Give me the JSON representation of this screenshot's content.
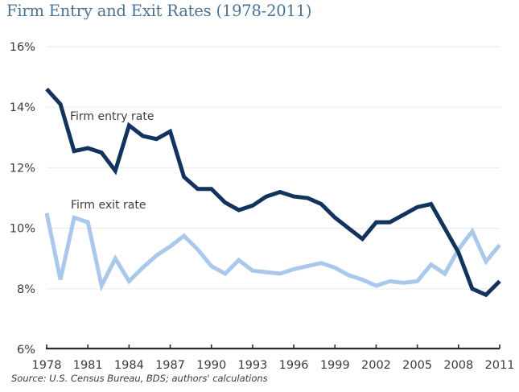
{
  "chart_data": {
    "type": "line",
    "title": "Firm Entry and Exit Rates (1978-2011)",
    "xlabel": "",
    "ylabel": "",
    "x": [
      1978,
      1979,
      1980,
      1981,
      1982,
      1983,
      1984,
      1985,
      1986,
      1987,
      1988,
      1989,
      1990,
      1991,
      1992,
      1993,
      1994,
      1995,
      1996,
      1997,
      1998,
      1999,
      2000,
      2001,
      2002,
      2003,
      2004,
      2005,
      2006,
      2007,
      2008,
      2009,
      2010,
      2011
    ],
    "xlim": [
      1978,
      2011
    ],
    "xticks": [
      "1978",
      "1981",
      "1984",
      "1987",
      "1990",
      "1993",
      "1996",
      "1999",
      "2002",
      "2005",
      "2008",
      "2011"
    ],
    "xtick_values": [
      1978,
      1981,
      1984,
      1987,
      1990,
      1993,
      1996,
      1999,
      2002,
      2005,
      2008,
      2011
    ],
    "ylim": [
      6,
      16
    ],
    "yticks": [
      "6%",
      "8%",
      "10%",
      "12%",
      "14%",
      "16%"
    ],
    "ytick_values": [
      6,
      8,
      10,
      12,
      14,
      16
    ],
    "grid": "horizontal",
    "series": [
      {
        "name": "Firm entry rate",
        "color": "#12335e",
        "values": [
          14.6,
          14.1,
          12.55,
          12.65,
          12.5,
          11.9,
          13.4,
          13.05,
          12.95,
          13.2,
          11.7,
          11.3,
          11.3,
          10.85,
          10.6,
          10.75,
          11.05,
          11.2,
          11.05,
          11.0,
          10.8,
          10.35,
          10.0,
          9.65,
          10.2,
          10.2,
          10.45,
          10.7,
          10.8,
          10.0,
          9.2,
          8.0,
          7.8,
          8.25
        ]
      },
      {
        "name": "Firm exit rate",
        "color": "#a9c8ec",
        "values": [
          10.5,
          8.3,
          10.35,
          10.2,
          8.1,
          9.0,
          8.25,
          8.7,
          9.1,
          9.4,
          9.75,
          9.3,
          8.75,
          8.5,
          8.95,
          8.6,
          8.55,
          8.5,
          8.65,
          8.75,
          8.85,
          8.7,
          8.45,
          8.3,
          8.1,
          8.25,
          8.2,
          8.25,
          8.8,
          8.5,
          9.3,
          9.9,
          8.9,
          9.45
        ]
      }
    ],
    "annotations": [
      "Firm entry rate",
      "Firm exit rate"
    ],
    "source": "Source: U.S. Census Bureau, BDS; authors' calculations"
  }
}
